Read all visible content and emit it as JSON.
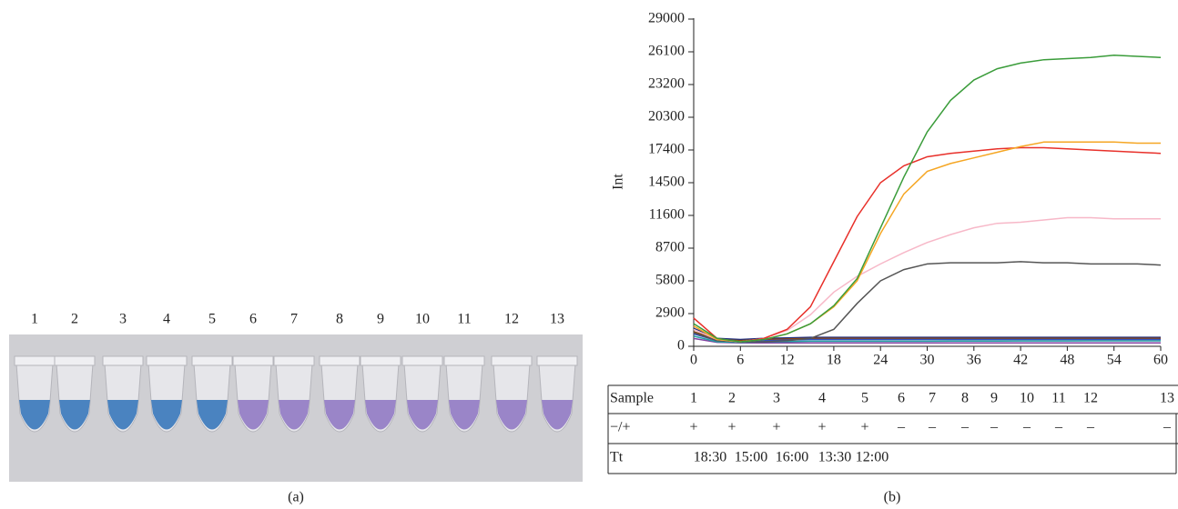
{
  "panel_a": {
    "tube_labels": [
      "1",
      "2",
      "3",
      "4",
      "5",
      "6",
      "7",
      "8",
      "9",
      "10",
      "11",
      "12",
      "13"
    ],
    "caption": "(a)"
  },
  "chart_data": {
    "type": "line",
    "ylabel": "Int",
    "caption": "(b)",
    "x": [
      0,
      3,
      6,
      9,
      12,
      15,
      18,
      21,
      24,
      27,
      30,
      33,
      36,
      39,
      42,
      45,
      48,
      51,
      54,
      57,
      60
    ],
    "xlim": [
      0,
      60
    ],
    "xticks": [
      0,
      6,
      12,
      18,
      24,
      30,
      36,
      42,
      48,
      54,
      60
    ],
    "ylim": [
      0,
      29000
    ],
    "yticks": [
      0,
      2900,
      5800,
      8700,
      11600,
      14500,
      17400,
      20300,
      23200,
      26100,
      29000
    ],
    "series": [
      {
        "color": "#3a9c3a",
        "values": [
          2000,
          700,
          400,
          600,
          1100,
          2000,
          3600,
          6000,
          10500,
          15000,
          19000,
          21800,
          23600,
          24600,
          25100,
          25400,
          25500,
          25600,
          25800,
          25700,
          25600
        ]
      },
      {
        "color": "#f5a623",
        "values": [
          1800,
          600,
          400,
          600,
          1100,
          2000,
          3500,
          5800,
          10000,
          13500,
          15500,
          16200,
          16700,
          17200,
          17700,
          18100,
          18100,
          18100,
          18100,
          18000,
          18000
        ]
      },
      {
        "color": "#e8302a",
        "values": [
          2500,
          700,
          400,
          700,
          1500,
          3500,
          7500,
          11500,
          14500,
          16000,
          16800,
          17100,
          17300,
          17500,
          17600,
          17600,
          17500,
          17400,
          17300,
          17200,
          17100
        ]
      },
      {
        "color": "#f7b8c8",
        "values": [
          1500,
          600,
          400,
          700,
          1400,
          2800,
          4800,
          6200,
          7300,
          8300,
          9200,
          9900,
          10500,
          10900,
          11000,
          11200,
          11400,
          11400,
          11300,
          11300,
          11300
        ]
      },
      {
        "color": "#555555",
        "values": [
          1200,
          500,
          400,
          400,
          500,
          700,
          1500,
          3800,
          5800,
          6800,
          7300,
          7400,
          7400,
          7400,
          7500,
          7400,
          7400,
          7300,
          7300,
          7300,
          7200
        ]
      },
      {
        "color": "#3050c0",
        "values": [
          1100,
          500,
          400,
          500,
          550,
          600,
          600,
          600,
          600,
          600,
          600,
          600,
          600,
          600,
          600,
          600,
          600,
          600,
          600,
          600,
          600
        ]
      },
      {
        "color": "#20a0a0",
        "values": [
          900,
          400,
          350,
          400,
          420,
          450,
          450,
          450,
          450,
          450,
          450,
          460,
          460,
          460,
          470,
          470,
          470,
          480,
          480,
          480,
          480
        ]
      },
      {
        "color": "#8040a0",
        "values": [
          700,
          350,
          300,
          300,
          300,
          300,
          300,
          300,
          300,
          300,
          300,
          300,
          300,
          300,
          300,
          300,
          300,
          300,
          300,
          300,
          300
        ]
      },
      {
        "color": "#8b4513",
        "values": [
          1300,
          600,
          500,
          600,
          650,
          700,
          700,
          700,
          700,
          700,
          700,
          700,
          700,
          700,
          700,
          700,
          700,
          700,
          700,
          700,
          700
        ]
      },
      {
        "color": "#203080",
        "values": [
          1600,
          700,
          600,
          700,
          750,
          800,
          800,
          800,
          800,
          800,
          800,
          800,
          800,
          800,
          800,
          800,
          800,
          800,
          800,
          800,
          800
        ]
      }
    ]
  },
  "table": {
    "rows": [
      [
        "Sample",
        "1",
        "2",
        "3",
        "4",
        "5",
        "6",
        "7",
        "8",
        "9",
        "10",
        "11",
        "12",
        "13"
      ],
      [
        "−/+",
        "+",
        "+",
        "+",
        "+",
        "+",
        "–",
        "–",
        "–",
        "–",
        "–",
        "–",
        "–",
        "–"
      ],
      [
        "Tt",
        "18:30",
        "15:00",
        "16:00",
        "13:30",
        "12:00"
      ]
    ]
  }
}
